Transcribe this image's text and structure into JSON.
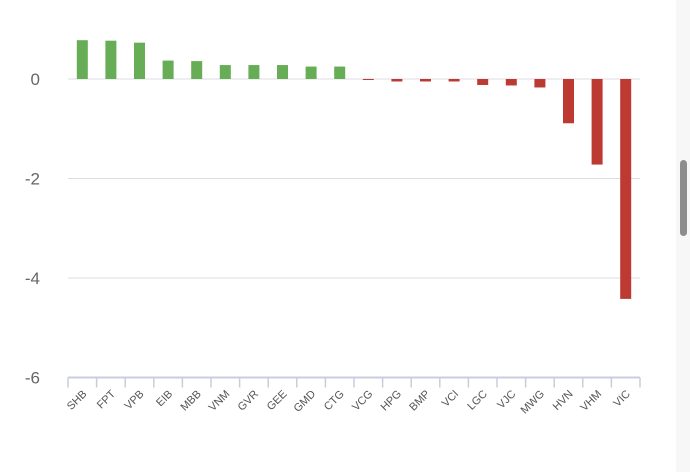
{
  "chart_data": {
    "type": "bar",
    "title": "",
    "xlabel": "",
    "ylabel": "",
    "ylim": [
      -6,
      1
    ],
    "yticks": [
      0,
      -2,
      -4,
      -6
    ],
    "grid": true,
    "legend": "none",
    "categories": [
      "SHB",
      "FPT",
      "VPB",
      "EIB",
      "MBB",
      "VNM",
      "GVR",
      "GEE",
      "GMD",
      "CTG",
      "VCG",
      "HPG",
      "BMP",
      "VCI",
      "LGC",
      "VJC",
      "MWG",
      "HVN",
      "VHM",
      "VIC"
    ],
    "values": [
      0.78,
      0.77,
      0.73,
      0.37,
      0.36,
      0.28,
      0.28,
      0.28,
      0.25,
      0.25,
      -0.02,
      -0.05,
      -0.05,
      -0.05,
      -0.12,
      -0.13,
      -0.17,
      -0.89,
      -1.72,
      -4.42
    ],
    "colors": {
      "positive": "#66ad55",
      "negative": "#bd3a32",
      "gridline": "#dcdce4",
      "axis": "#c9cce0"
    }
  }
}
